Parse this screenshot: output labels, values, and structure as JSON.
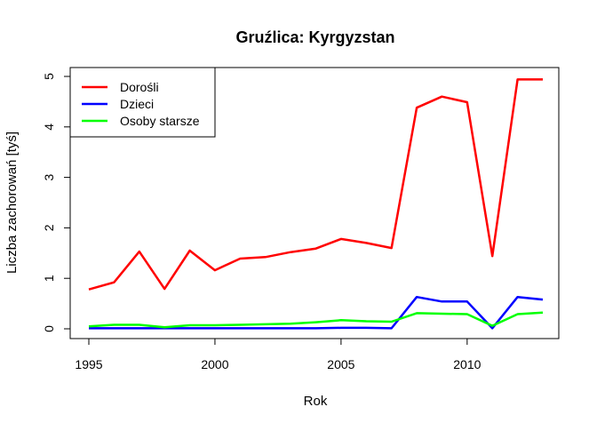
{
  "chart_data": {
    "type": "line",
    "title": "Gruźlica: Kyrgyzstan",
    "xlabel": "Rok",
    "ylabel": "Liczba zachorowań [tyś]",
    "x": [
      1995,
      1996,
      1997,
      1998,
      1999,
      2000,
      2001,
      2002,
      2003,
      2004,
      2005,
      2006,
      2007,
      2008,
      2009,
      2010,
      2011,
      2012,
      2013
    ],
    "xlim": [
      1995,
      2013
    ],
    "ylim": [
      0,
      5
    ],
    "x_ticks": [
      1995,
      2000,
      2005,
      2010
    ],
    "y_ticks": [
      0,
      1,
      2,
      3,
      4,
      5
    ],
    "grid": false,
    "legend_position": "top-left",
    "series": [
      {
        "name": "Dorośli",
        "color": "#ff0000",
        "values": [
          0.78,
          0.92,
          1.53,
          0.79,
          1.55,
          1.16,
          1.39,
          1.42,
          1.52,
          1.59,
          1.78,
          1.7,
          1.6,
          4.38,
          4.6,
          4.49,
          1.44,
          4.94,
          4.94
        ]
      },
      {
        "name": "Dzieci",
        "color": "#0000ff",
        "values": [
          0.01,
          0.01,
          0.01,
          0.01,
          0.01,
          0.01,
          0.01,
          0.01,
          0.01,
          0.01,
          0.02,
          0.02,
          0.01,
          0.63,
          0.54,
          0.54,
          0.01,
          0.63,
          0.58
        ]
      },
      {
        "name": "Osoby starsze",
        "color": "#00ff00",
        "values": [
          0.05,
          0.08,
          0.08,
          0.03,
          0.07,
          0.07,
          0.08,
          0.09,
          0.1,
          0.13,
          0.17,
          0.15,
          0.14,
          0.31,
          0.3,
          0.29,
          0.06,
          0.29,
          0.32
        ]
      }
    ]
  }
}
